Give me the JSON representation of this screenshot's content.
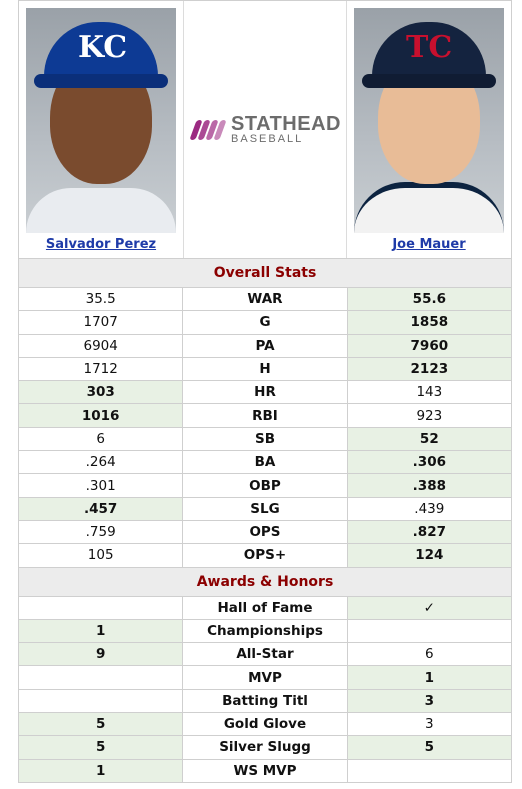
{
  "brand": {
    "line1": "STATHEAD",
    "line2": "BASEBALL"
  },
  "players": {
    "left": {
      "name": "Salvador Perez",
      "logo_text": "KC"
    },
    "right": {
      "name": "Joe Mauer",
      "logo_text": "TC"
    }
  },
  "sections": {
    "overall": "Overall Stats",
    "awards": "Awards & Honors"
  },
  "overall_stats": [
    {
      "stat": "WAR",
      "left": "35.5",
      "right": "55.6",
      "winner": "right"
    },
    {
      "stat": "G",
      "left": "1707",
      "right": "1858",
      "winner": "right"
    },
    {
      "stat": "PA",
      "left": "6904",
      "right": "7960",
      "winner": "right"
    },
    {
      "stat": "H",
      "left": "1712",
      "right": "2123",
      "winner": "right"
    },
    {
      "stat": "HR",
      "left": "303",
      "right": "143",
      "winner": "left"
    },
    {
      "stat": "RBI",
      "left": "1016",
      "right": "923",
      "winner": "left"
    },
    {
      "stat": "SB",
      "left": "6",
      "right": "52",
      "winner": "right"
    },
    {
      "stat": "BA",
      "left": ".264",
      "right": ".306",
      "winner": "right"
    },
    {
      "stat": "OBP",
      "left": ".301",
      "right": ".388",
      "winner": "right"
    },
    {
      "stat": "SLG",
      "left": ".457",
      "right": ".439",
      "winner": "left"
    },
    {
      "stat": "OPS",
      "left": ".759",
      "right": ".827",
      "winner": "right"
    },
    {
      "stat": "OPS+",
      "left": "105",
      "right": "124",
      "winner": "right"
    }
  ],
  "awards": [
    {
      "stat": "Hall of Fame",
      "left": "",
      "right": "✓",
      "winner": "right"
    },
    {
      "stat": "Championships",
      "left": "1",
      "right": "",
      "winner": "left"
    },
    {
      "stat": "All-Star",
      "left": "9",
      "right": "6",
      "winner": "left"
    },
    {
      "stat": "MVP",
      "left": "",
      "right": "1",
      "winner": "right"
    },
    {
      "stat": "Batting Titl",
      "left": "",
      "right": "3",
      "winner": "right"
    },
    {
      "stat": "Gold Glove",
      "left": "5",
      "right": "3",
      "winner": "left"
    },
    {
      "stat": "Silver Slugg",
      "left": "5",
      "right": "5",
      "winner": "both"
    },
    {
      "stat": "WS MVP",
      "left": "1",
      "right": "",
      "winner": "left"
    }
  ]
}
